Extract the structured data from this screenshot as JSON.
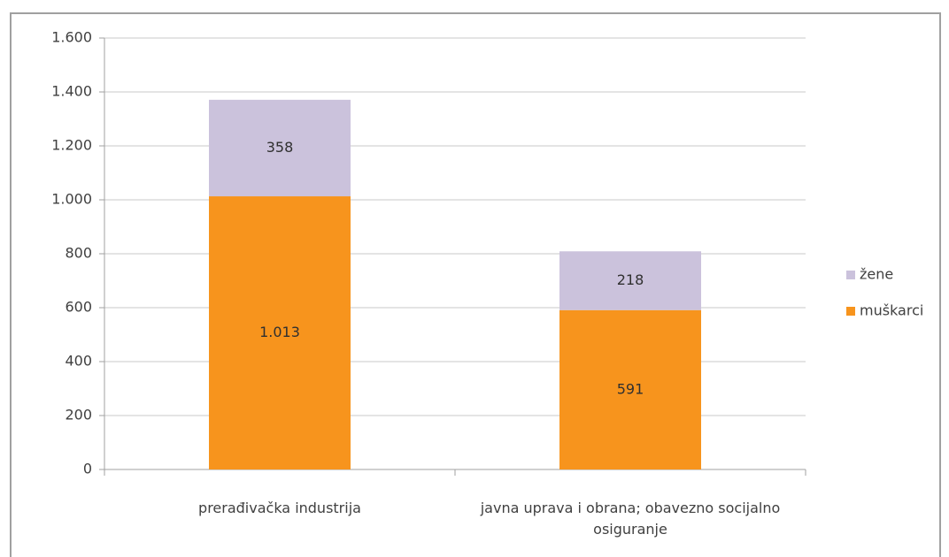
{
  "chart_data": {
    "type": "stacked_bar",
    "categories": [
      "prerađivačka industrija",
      "javna uprava i obrana; obavezno socijalno osiguranje"
    ],
    "series": [
      {
        "name": "muškarci",
        "color": "#f7941d",
        "values": [
          1013,
          591
        ],
        "value_labels": [
          "1.013",
          "591"
        ]
      },
      {
        "name": "žene",
        "color": "#cbc2dc",
        "values": [
          358,
          218
        ]
      }
    ],
    "ylim": [
      0,
      1600
    ],
    "yticks": [
      0,
      200,
      400,
      600,
      800,
      {
        "value": 1000,
        "label": "1.000"
      },
      {
        "value": 1200,
        "label": "1.200"
      },
      {
        "value": 1400,
        "label": "1.400"
      },
      {
        "value": 1600,
        "label": "1.600"
      }
    ],
    "grid": true,
    "legend": "right"
  }
}
